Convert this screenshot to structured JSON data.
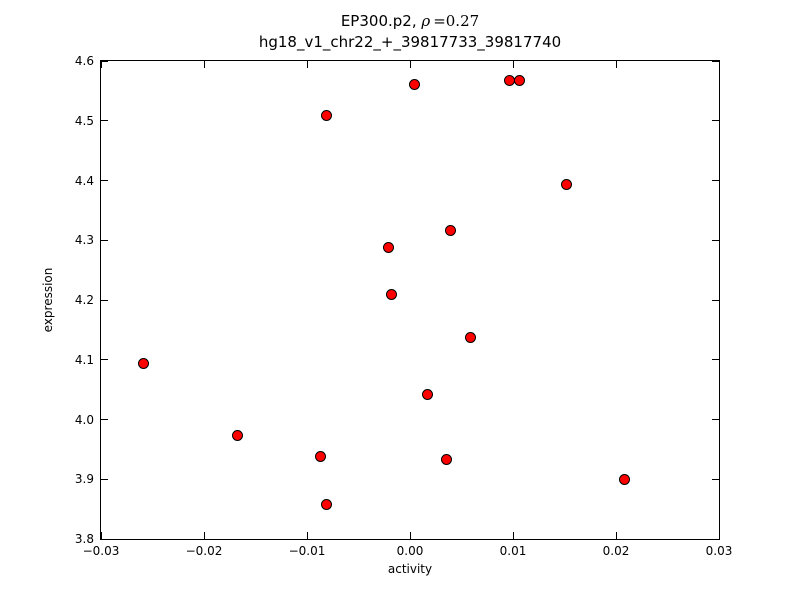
{
  "figure": {
    "title_prefix": "EP300.p2, ",
    "title_rho": "ρ",
    "title_eq": "=0.27",
    "subtitle": "hg18_v1_chr22_+_39817733_39817740"
  },
  "chart_data": {
    "type": "scatter",
    "title": "EP300.p2, ρ =0.27",
    "subtitle": "hg18_v1_chr22_+_39817733_39817740",
    "xlabel": "activity",
    "ylabel": "expression",
    "xlim": [
      -0.03,
      0.03
    ],
    "ylim": [
      3.8,
      4.6
    ],
    "xticks": [
      -0.03,
      -0.02,
      -0.01,
      0.0,
      0.01,
      0.02,
      0.03
    ],
    "xtick_labels": [
      "−0.03",
      "−0.02",
      "−0.01",
      "0.00",
      "0.01",
      "0.02",
      "0.03"
    ],
    "yticks": [
      3.8,
      3.9,
      4.0,
      4.1,
      4.2,
      4.3,
      4.4,
      4.5,
      4.6
    ],
    "ytick_labels": [
      "3.8",
      "3.9",
      "4.0",
      "4.1",
      "4.2",
      "4.3",
      "4.4",
      "4.5",
      "4.6"
    ],
    "grid": false,
    "legend": null,
    "marker": "circle",
    "marker_color": "#ff0000",
    "marker_edge_color": "#000000",
    "points": [
      [
        -0.0259,
        4.093
      ],
      [
        -0.0167,
        3.973
      ],
      [
        -0.0087,
        3.938
      ],
      [
        -0.0081,
        4.508
      ],
      [
        -0.0081,
        3.857
      ],
      [
        -0.0021,
        4.288
      ],
      [
        -0.0018,
        4.21
      ],
      [
        0.0004,
        4.561
      ],
      [
        0.0017,
        4.042
      ],
      [
        0.0035,
        3.933
      ],
      [
        0.0039,
        4.316
      ],
      [
        0.0059,
        4.138
      ],
      [
        0.0097,
        4.567
      ],
      [
        0.0106,
        4.568
      ],
      [
        0.0152,
        4.394
      ],
      [
        0.0208,
        3.9
      ]
    ]
  }
}
